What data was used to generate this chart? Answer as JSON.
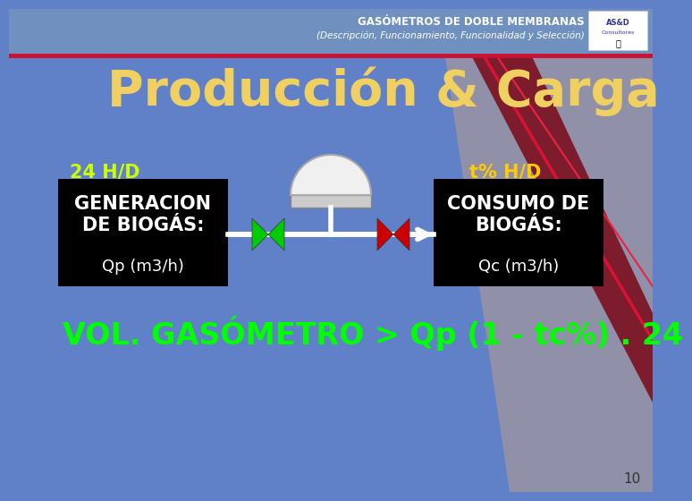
{
  "title_line1": "GASÓMETROS DE DOBLE MEMBRANAS",
  "title_line2": "(Descripción, Funcionamiento, Funcionalidad y Selección)",
  "main_title": "Producción & Carga",
  "label_left_time": "24 H/D",
  "label_right_time": "t% H/D",
  "box_left_line1": "GENERACION",
  "box_left_line2": "DE BIOGÁS:",
  "box_left_line3": "Qp (m3/h)",
  "box_right_line1": "CONSUMO DE",
  "box_right_line2": "BIOGÁS:",
  "box_right_line3": "Qc (m3/h)",
  "bottom_text": "VOL. GASÓMETRO > Qp (1 - tc%) . 24",
  "page_num": "10",
  "bg_left_color": "#6080c8",
  "bg_right_color": "#9090a8",
  "header_bg": "#7090c0",
  "title_color": "#ffffff",
  "main_title_color": "#f0d060",
  "label_time_left_color": "#ccff00",
  "label_time_right_color": "#ffcc00",
  "box_bg": "#000000",
  "box_text_color": "#ffffff",
  "bottom_text_color": "#00ff00",
  "separator_line_color": "#cc1133",
  "arrow_color": "#ffffff",
  "valve_left_color": "#00cc00",
  "valve_right_color": "#cc0000",
  "gasometer_body_color": "#cccccc",
  "gasometer_dome_color": "#f0f0f0"
}
